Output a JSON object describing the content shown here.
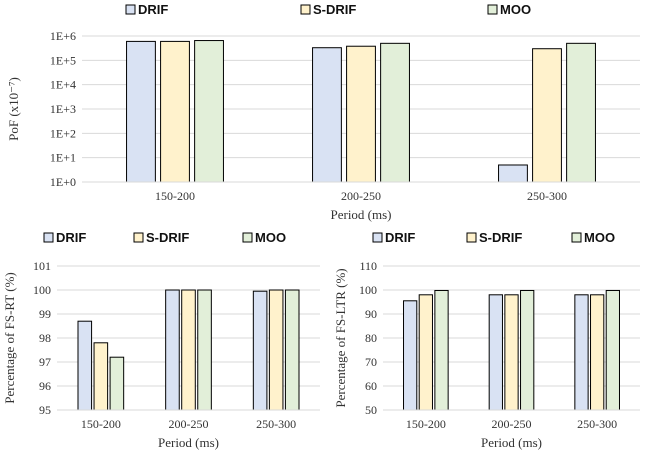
{
  "colors": {
    "DRIF": "#d9e2f3",
    "S-DRIF": "#fff2cc",
    "MOO": "#e2efd9",
    "stroke": "#000000",
    "grid": "#d9d9d9"
  },
  "chart_data": [
    {
      "type": "bar",
      "categories": [
        "150-200",
        "200-250",
        "250-300"
      ],
      "series": [
        {
          "name": "DRIF",
          "values": [
            600000,
            330000,
            5
          ]
        },
        {
          "name": "S-DRIF",
          "values": [
            600000,
            380000,
            300000
          ]
        },
        {
          "name": "MOO",
          "values": [
            650000,
            500000,
            500000
          ]
        }
      ],
      "xlabel": "Period (ms)",
      "ylabel": "PoF (x10⁻⁷)",
      "yscale": "log",
      "ylim": [
        1,
        1000000
      ],
      "yticks": [
        1,
        10,
        100,
        1000,
        10000,
        100000,
        1000000
      ],
      "ytick_labels": [
        "1E+0",
        "1E+1",
        "1E+2",
        "1E+3",
        "1E+4",
        "1E+5",
        "1E+6"
      ],
      "legend": "top",
      "grid": true
    },
    {
      "type": "bar",
      "categories": [
        "150-200",
        "200-250",
        "250-300"
      ],
      "series": [
        {
          "name": "DRIF",
          "values": [
            98.7,
            100,
            99.95
          ]
        },
        {
          "name": "S-DRIF",
          "values": [
            97.8,
            100,
            100
          ]
        },
        {
          "name": "MOO",
          "values": [
            97.2,
            100,
            100
          ]
        }
      ],
      "xlabel": "Period (ms)",
      "ylabel": "Percentage of FS-RT (%)",
      "ylim": [
        95,
        101
      ],
      "yticks": [
        95,
        96,
        97,
        98,
        99,
        100,
        101
      ],
      "legend": "top",
      "grid": true
    },
    {
      "type": "bar",
      "categories": [
        "150-200",
        "200-250",
        "250-300"
      ],
      "series": [
        {
          "name": "DRIF",
          "values": [
            95.5,
            98,
            98
          ]
        },
        {
          "name": "S-DRIF",
          "values": [
            98,
            98,
            98
          ]
        },
        {
          "name": "MOO",
          "values": [
            99.8,
            99.8,
            99.8
          ]
        }
      ],
      "xlabel": "Period (ms)",
      "ylabel": "Percentage of FS-LTR (%)",
      "ylim": [
        50,
        110
      ],
      "yticks": [
        50,
        60,
        70,
        80,
        90,
        100,
        110
      ],
      "legend": "top",
      "grid": true
    }
  ]
}
